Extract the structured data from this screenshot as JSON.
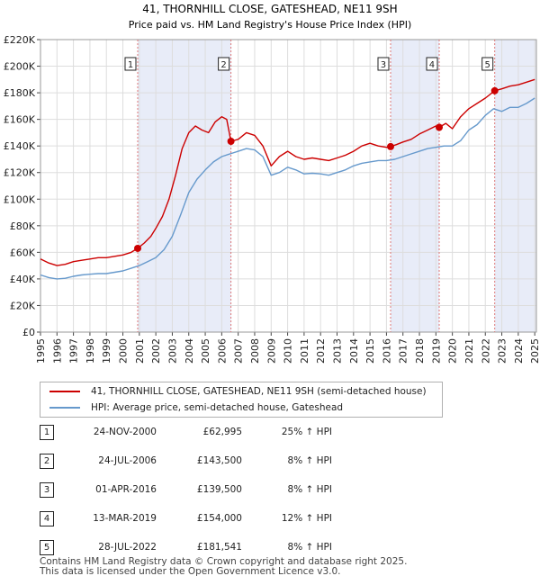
{
  "chart_data": {
    "type": "line",
    "title": "41, THORNHILL CLOSE, GATESHEAD, NE11 9SH",
    "subtitle": "Price paid vs. HM Land Registry's House Price Index (HPI)",
    "x_tick_labels": [
      "1995",
      "1996",
      "1997",
      "1998",
      "1999",
      "2000",
      "2001",
      "2002",
      "2003",
      "2004",
      "2005",
      "2006",
      "2007",
      "2008",
      "2009",
      "2010",
      "2011",
      "2012",
      "2013",
      "2014",
      "2015",
      "2016",
      "2017",
      "2018",
      "2019",
      "2020",
      "2021",
      "2022",
      "2023",
      "2024",
      "2025"
    ],
    "y_tick_labels": [
      "£0",
      "£20K",
      "£40K",
      "£60K",
      "£80K",
      "£100K",
      "£120K",
      "£140K",
      "£160K",
      "£180K",
      "£200K",
      "£220K"
    ],
    "xlim": [
      1995,
      2025.1
    ],
    "ylim": [
      0,
      220000
    ],
    "grid": true,
    "series": [
      {
        "name": "41, THORNHILL CLOSE, GATESHEAD, NE11 9SH (semi-detached house)",
        "color": "#cc0000",
        "x": [
          1995.0,
          1995.5,
          1996.0,
          1996.5,
          1997.0,
          1997.5,
          1998.0,
          1998.5,
          1999.0,
          1999.5,
          2000.0,
          2000.5,
          2000.9,
          2001.3,
          2001.7,
          2002.0,
          2002.4,
          2002.8,
          2003.2,
          2003.6,
          2004.0,
          2004.4,
          2004.8,
          2005.2,
          2005.6,
          2006.0,
          2006.3,
          2006.56,
          2007.0,
          2007.5,
          2008.0,
          2008.5,
          2009.0,
          2009.5,
          2010.0,
          2010.5,
          2011.0,
          2011.5,
          2012.0,
          2012.5,
          2013.0,
          2013.5,
          2014.0,
          2014.5,
          2015.0,
          2015.5,
          2016.0,
          2016.25,
          2016.6,
          2017.0,
          2017.5,
          2018.0,
          2018.5,
          2019.0,
          2019.2,
          2019.6,
          2020.0,
          2020.5,
          2021.0,
          2021.5,
          2022.0,
          2022.57,
          2023.0,
          2023.5,
          2024.0,
          2024.5,
          2025.0
        ],
        "y": [
          55000,
          52000,
          50000,
          51000,
          53000,
          54000,
          55000,
          56000,
          56000,
          57000,
          58000,
          60000,
          62995,
          67000,
          72000,
          78000,
          87000,
          100000,
          118000,
          138000,
          150000,
          155000,
          152000,
          150000,
          158000,
          162000,
          160000,
          143500,
          145000,
          150000,
          148000,
          140000,
          125000,
          132000,
          136000,
          132000,
          130000,
          131000,
          130000,
          129000,
          131000,
          133000,
          136000,
          140000,
          142000,
          140000,
          139000,
          139500,
          141000,
          143000,
          145000,
          149000,
          152000,
          155000,
          154000,
          157000,
          153000,
          162000,
          168000,
          172000,
          176000,
          181541,
          183000,
          185000,
          186000,
          188000,
          190000
        ]
      },
      {
        "name": "HPI: Average price, semi-detached house, Gateshead",
        "color": "#6699cc",
        "x": [
          1995.0,
          1995.5,
          1996.0,
          1996.5,
          1997.0,
          1997.5,
          1998.0,
          1998.5,
          1999.0,
          1999.5,
          2000.0,
          2000.5,
          2001.0,
          2001.5,
          2002.0,
          2002.5,
          2003.0,
          2003.5,
          2004.0,
          2004.5,
          2005.0,
          2005.5,
          2006.0,
          2006.5,
          2007.0,
          2007.5,
          2008.0,
          2008.5,
          2009.0,
          2009.5,
          2010.0,
          2010.5,
          2011.0,
          2011.5,
          2012.0,
          2012.5,
          2013.0,
          2013.5,
          2014.0,
          2014.5,
          2015.0,
          2015.5,
          2016.0,
          2016.5,
          2017.0,
          2017.5,
          2018.0,
          2018.5,
          2019.0,
          2019.5,
          2020.0,
          2020.5,
          2021.0,
          2021.5,
          2022.0,
          2022.5,
          2023.0,
          2023.5,
          2024.0,
          2024.5,
          2025.0
        ],
        "y": [
          43000,
          41000,
          40000,
          40500,
          42000,
          43000,
          43500,
          44000,
          44000,
          45000,
          46000,
          48000,
          50000,
          53000,
          56000,
          62000,
          72000,
          88000,
          105000,
          115000,
          122000,
          128000,
          132000,
          134000,
          136000,
          138000,
          137000,
          132000,
          118000,
          120000,
          124000,
          122000,
          119000,
          119500,
          119000,
          118000,
          120000,
          122000,
          125000,
          127000,
          128000,
          129000,
          129000,
          130000,
          132000,
          134000,
          136000,
          138000,
          139000,
          140000,
          140000,
          144000,
          152000,
          156000,
          163000,
          168000,
          166000,
          169000,
          169000,
          172000,
          176000
        ]
      }
    ],
    "sales": [
      {
        "num": "1",
        "x": 2000.9,
        "y": 62995,
        "date": "24-NOV-2000",
        "price": "£62,995",
        "hpi": "25% ↑ HPI"
      },
      {
        "num": "2",
        "x": 2006.56,
        "y": 143500,
        "date": "24-JUL-2006",
        "price": "£143,500",
        "hpi": "8% ↑ HPI"
      },
      {
        "num": "3",
        "x": 2016.25,
        "y": 139500,
        "date": "01-APR-2016",
        "price": "£139,500",
        "hpi": "8% ↑ HPI"
      },
      {
        "num": "4",
        "x": 2019.2,
        "y": 154000,
        "date": "13-MAR-2019",
        "price": "£154,000",
        "hpi": "12% ↑ HPI"
      },
      {
        "num": "5",
        "x": 2022.57,
        "y": 181541,
        "date": "28-JUL-2022",
        "price": "£181,541",
        "hpi": "8% ↑ HPI"
      }
    ],
    "shaded_periods": [
      [
        2000.9,
        2006.56
      ],
      [
        2016.25,
        2019.2
      ],
      [
        2022.57,
        2025.1
      ]
    ],
    "colors": {
      "shade": "#e8ecf8",
      "grid": "#dddddd",
      "vline": "#dd7777"
    }
  },
  "legend": {
    "property_label": "41, THORNHILL CLOSE, GATESHEAD, NE11 9SH (semi-detached house)",
    "hpi_label": "HPI: Average price, semi-detached house, Gateshead",
    "property_color": "#cc0000",
    "hpi_color": "#6699cc"
  },
  "footer": {
    "line1": "Contains HM Land Registry data © Crown copyright and database right 2025.",
    "line2": "This data is licensed under the Open Government Licence v3.0."
  }
}
